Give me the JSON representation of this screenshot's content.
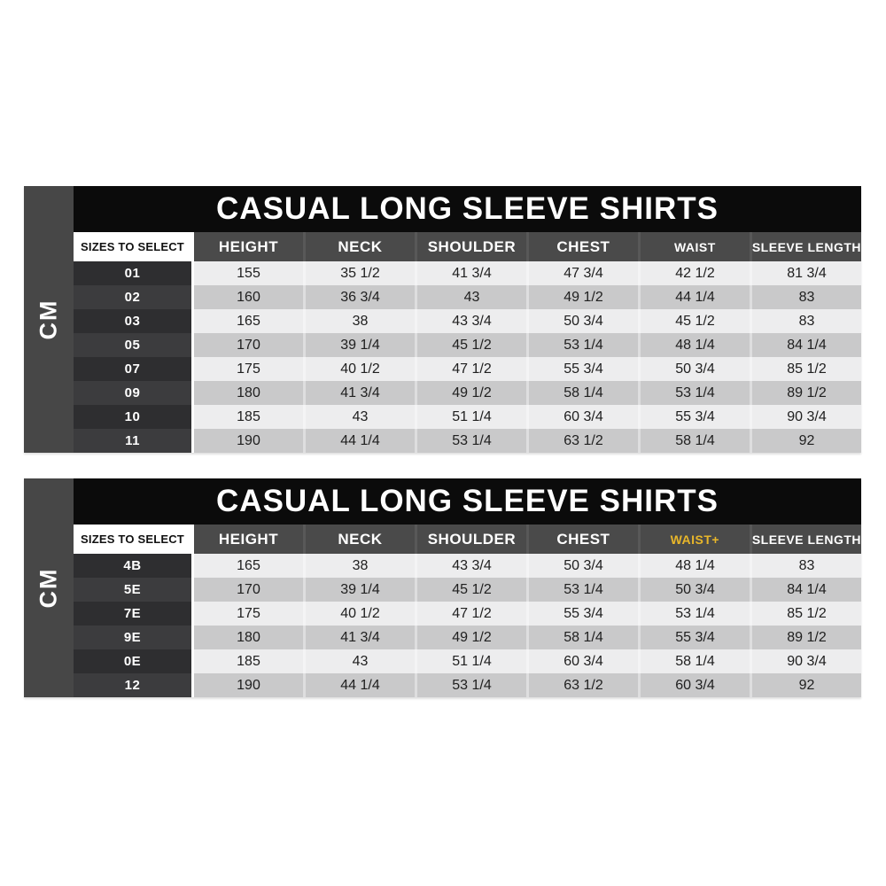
{
  "colors": {
    "highlight": "#e8b62a",
    "title_bar": "#0b0b0b",
    "sidebar": "#474747",
    "header": "#4a4a4a",
    "size_row_odd": "#2e2e30",
    "size_row_even": "#3c3c3e",
    "data_row_odd": "#ededee",
    "data_row_even": "#c9c9ca"
  },
  "chart_data": [
    {
      "type": "table",
      "title": "CASUAL LONG SLEEVE SHIRTS",
      "unit": "CM",
      "corner_header": "SIZES TO SELECT",
      "columns": [
        "HEIGHT",
        "NECK",
        "SHOULDER",
        "CHEST",
        "WAIST",
        "SLEEVE LENGTH"
      ],
      "highlighted_column": null,
      "rows": [
        {
          "size": "01",
          "values": [
            "155",
            "35 1/2",
            "41 3/4",
            "47 3/4",
            "42 1/2",
            "81 3/4"
          ]
        },
        {
          "size": "02",
          "values": [
            "160",
            "36 3/4",
            "43",
            "49 1/2",
            "44 1/4",
            "83"
          ]
        },
        {
          "size": "03",
          "values": [
            "165",
            "38",
            "43 3/4",
            "50 3/4",
            "45 1/2",
            "83"
          ]
        },
        {
          "size": "05",
          "values": [
            "170",
            "39 1/4",
            "45 1/2",
            "53 1/4",
            "48 1/4",
            "84 1/4"
          ]
        },
        {
          "size": "07",
          "values": [
            "175",
            "40 1/2",
            "47 1/2",
            "55 3/4",
            "50 3/4",
            "85 1/2"
          ]
        },
        {
          "size": "09",
          "values": [
            "180",
            "41 3/4",
            "49 1/2",
            "58 1/4",
            "53 1/4",
            "89 1/2"
          ]
        },
        {
          "size": "10",
          "values": [
            "185",
            "43",
            "51 1/4",
            "60 3/4",
            "55 3/4",
            "90 3/4"
          ]
        },
        {
          "size": "11",
          "values": [
            "190",
            "44 1/4",
            "53 1/4",
            "63 1/2",
            "58 1/4",
            "92"
          ]
        }
      ]
    },
    {
      "type": "table",
      "title": "CASUAL LONG SLEEVE SHIRTS",
      "unit": "CM",
      "corner_header": "SIZES TO SELECT",
      "columns": [
        "HEIGHT",
        "NECK",
        "SHOULDER",
        "CHEST",
        "WAIST+",
        "SLEEVE LENGTH"
      ],
      "highlighted_column": "WAIST+",
      "rows": [
        {
          "size": "4B",
          "values": [
            "165",
            "38",
            "43 3/4",
            "50 3/4",
            "48 1/4",
            "83"
          ]
        },
        {
          "size": "5E",
          "values": [
            "170",
            "39 1/4",
            "45 1/2",
            "53 1/4",
            "50 3/4",
            "84 1/4"
          ]
        },
        {
          "size": "7E",
          "values": [
            "175",
            "40 1/2",
            "47 1/2",
            "55 3/4",
            "53 1/4",
            "85 1/2"
          ]
        },
        {
          "size": "9E",
          "values": [
            "180",
            "41 3/4",
            "49 1/2",
            "58 1/4",
            "55 3/4",
            "89 1/2"
          ]
        },
        {
          "size": "0E",
          "values": [
            "185",
            "43",
            "51 1/4",
            "60 3/4",
            "58 1/4",
            "90 3/4"
          ]
        },
        {
          "size": "12",
          "values": [
            "190",
            "44 1/4",
            "53 1/4",
            "63 1/2",
            "60 3/4",
            "92"
          ]
        }
      ]
    }
  ]
}
